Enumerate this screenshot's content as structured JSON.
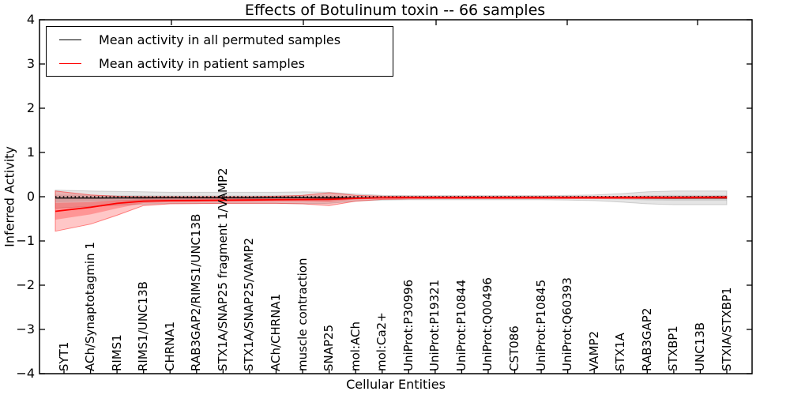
{
  "title": "Effects of Botulinum toxin -- 66 samples",
  "colors": {
    "patient_line": "#ff0000",
    "permuted_line": "#000000",
    "patient_band": "rgba(255,0,0,0.22)",
    "permuted_band": "rgba(0,0,0,0.10)",
    "frame": "#000000"
  },
  "chart_data": {
    "type": "line",
    "title": "Effects of Botulinum toxin -- 66 samples",
    "xlabel": "Cellular Entities",
    "ylabel": "Inferred Activity",
    "ylim": [
      -4,
      4
    ],
    "yticks": [
      4,
      3,
      2,
      1,
      0,
      -1,
      -2,
      -3,
      -4
    ],
    "grid": false,
    "legend_position": "upper-left",
    "zero_reference_line": "dotted black line at y=0",
    "categories": [
      "SYT1",
      "ACh/Synaptotagmin 1",
      "RIMS1",
      "RIMS1/UNC13B",
      "CHRNA1",
      "RAB3GAP2/RIMS1/UNC13B",
      "STX1A/SNAP25 fragment 1/VAMP2",
      "STX1A/SNAP25/VAMP2",
      "ACh/CHRNA1",
      "muscle contraction",
      "SNAP25",
      "mol:ACh",
      "mol:Ca2+",
      "UniProt:P30996",
      "UniProt:P19321",
      "UniProt:P10844",
      "UniProt:Q00496",
      "CST086",
      "UniProt:P10845",
      "UniProt:Q60393",
      "VAMP2",
      "STX1A",
      "RAB3GAP2",
      "STXBP1",
      "UNC13B",
      "STXIA/STXBP1"
    ],
    "series": [
      {
        "name": "Mean activity in all permuted samples",
        "color": "#000000",
        "values": [
          -0.03,
          -0.03,
          -0.028,
          -0.026,
          -0.025,
          -0.025,
          -0.025,
          -0.025,
          -0.024,
          -0.024,
          -0.028,
          -0.025,
          -0.022,
          -0.02,
          -0.02,
          -0.02,
          -0.02,
          -0.02,
          -0.02,
          -0.02,
          -0.02,
          -0.022,
          -0.025,
          -0.027,
          -0.028,
          -0.028
        ],
        "band_upper": [
          0.15,
          0.13,
          0.12,
          0.11,
          0.1,
          0.1,
          0.1,
          0.1,
          0.1,
          0.11,
          0.1,
          0.06,
          0.03,
          0.025,
          0.025,
          0.025,
          0.025,
          0.025,
          0.025,
          0.03,
          0.04,
          0.07,
          0.11,
          0.13,
          0.13,
          0.13
        ],
        "band_lower": [
          -0.26,
          -0.22,
          -0.19,
          -0.17,
          -0.15,
          -0.15,
          -0.15,
          -0.15,
          -0.15,
          -0.16,
          -0.15,
          -0.1,
          -0.075,
          -0.07,
          -0.07,
          -0.07,
          -0.07,
          -0.07,
          -0.07,
          -0.075,
          -0.09,
          -0.12,
          -0.16,
          -0.18,
          -0.18,
          -0.18
        ]
      },
      {
        "name": "Mean activity in patient samples",
        "color": "#ff0000",
        "values": [
          -0.33,
          -0.24,
          -0.15,
          -0.1,
          -0.09,
          -0.085,
          -0.08,
          -0.075,
          -0.07,
          -0.065,
          -0.06,
          -0.035,
          -0.025,
          -0.02,
          -0.02,
          -0.02,
          -0.02,
          -0.02,
          -0.02,
          -0.02,
          -0.02,
          -0.02,
          -0.02,
          -0.02,
          -0.018,
          -0.015
        ],
        "band_upper": [
          0.13,
          0.04,
          0.01,
          0.0,
          0.0,
          0.0,
          0.0,
          0.0,
          0.01,
          0.03,
          0.09,
          0.03,
          0.01,
          0.005,
          0.005,
          0.005,
          0.005,
          0.005,
          0.005,
          0.005,
          0.005,
          0.005,
          0.005,
          0.005,
          0.008,
          0.01
        ],
        "band_lower": [
          -0.78,
          -0.62,
          -0.42,
          -0.2,
          -0.16,
          -0.155,
          -0.15,
          -0.15,
          -0.15,
          -0.16,
          -0.2,
          -0.1,
          -0.06,
          -0.05,
          -0.045,
          -0.045,
          -0.045,
          -0.045,
          -0.045,
          -0.045,
          -0.045,
          -0.045,
          -0.045,
          -0.045,
          -0.04,
          -0.04
        ]
      }
    ]
  }
}
